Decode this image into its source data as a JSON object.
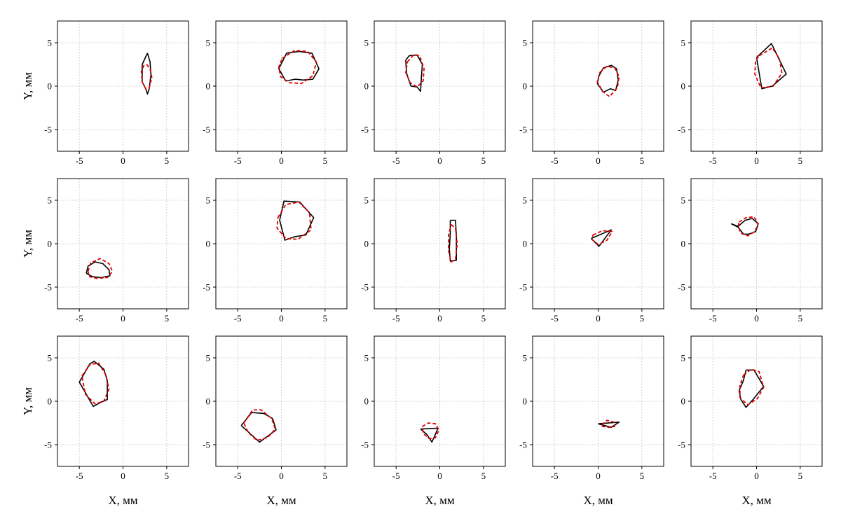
{
  "colors": {
    "outline": "#000000",
    "fit": "#e00000",
    "grid": "#c8c8c8"
  },
  "labels": {
    "xlabel": "X, мм",
    "ylabel": "Y, мм"
  },
  "chart_data": {
    "type": "line",
    "rows": 3,
    "cols": 5,
    "xlim": [
      -7.5,
      7.5
    ],
    "ylim": [
      -7.5,
      7.5
    ],
    "xticks": [
      -5,
      0,
      5
    ],
    "yticks": [
      -5,
      0,
      5
    ],
    "grid": true,
    "xlabel": "X, мм",
    "ylabel": "Y, мм",
    "series": [
      {
        "name": "",
        "style": "solid",
        "color": "#000000"
      },
      {
        "name": "",
        "style": "dashed",
        "color": "#e00000"
      }
    ],
    "panels": [
      {
        "solid": [
          [
            2.8,
            3.8
          ],
          [
            3.1,
            2.8
          ],
          [
            3.2,
            1.3
          ],
          [
            3.0,
            -0.3
          ],
          [
            2.8,
            -0.9
          ],
          [
            2.6,
            -0.3
          ],
          [
            2.2,
            0.5
          ],
          [
            2.2,
            2.5
          ],
          [
            2.8,
            3.8
          ]
        ],
        "dashed": [
          [
            2.7,
            2.5
          ],
          [
            3.1,
            2.0
          ],
          [
            3.3,
            1.0
          ],
          [
            3.0,
            -0.2
          ],
          [
            2.6,
            -0.3
          ],
          [
            2.2,
            0.5
          ],
          [
            2.1,
            1.7
          ],
          [
            2.4,
            2.4
          ],
          [
            2.7,
            2.5
          ]
        ]
      },
      {
        "solid": [
          [
            0.0,
            2.6
          ],
          [
            0.6,
            3.8
          ],
          [
            2.0,
            4.0
          ],
          [
            3.5,
            3.8
          ],
          [
            4.3,
            2.0
          ],
          [
            3.6,
            0.8
          ],
          [
            2.5,
            0.7
          ],
          [
            1.6,
            0.8
          ],
          [
            0.5,
            0.6
          ],
          [
            -0.3,
            2.0
          ],
          [
            0.0,
            2.6
          ]
        ],
        "dashed": [
          [
            0.1,
            3.2
          ],
          [
            1.5,
            4.1
          ],
          [
            3.0,
            4.0
          ],
          [
            4.0,
            2.8
          ],
          [
            3.6,
            1.2
          ],
          [
            2.3,
            0.3
          ],
          [
            0.9,
            0.4
          ],
          [
            -0.1,
            1.1
          ],
          [
            -0.3,
            2.2
          ],
          [
            0.1,
            3.2
          ]
        ]
      },
      {
        "solid": [
          [
            -3.9,
            3.0
          ],
          [
            -3.5,
            3.5
          ],
          [
            -2.6,
            3.6
          ],
          [
            -2.0,
            2.5
          ],
          [
            -2.1,
            1.0
          ],
          [
            -2.2,
            -0.6
          ],
          [
            -2.6,
            -0.1
          ],
          [
            -3.3,
            0.0
          ],
          [
            -3.8,
            1.5
          ],
          [
            -3.9,
            3.0
          ]
        ],
        "dashed": [
          [
            -3.7,
            2.8
          ],
          [
            -3.0,
            3.6
          ],
          [
            -2.3,
            3.5
          ],
          [
            -1.8,
            2.0
          ],
          [
            -1.9,
            0.6
          ],
          [
            -2.6,
            -0.1
          ],
          [
            -3.4,
            0.4
          ],
          [
            -3.9,
            1.6
          ],
          [
            -3.7,
            2.8
          ]
        ]
      },
      {
        "solid": [
          [
            0.1,
            1.2
          ],
          [
            0.6,
            2.1
          ],
          [
            1.5,
            2.4
          ],
          [
            2.1,
            2.0
          ],
          [
            2.3,
            0.7
          ],
          [
            2.0,
            -0.5
          ],
          [
            1.4,
            -0.3
          ],
          [
            0.6,
            -0.7
          ],
          [
            -0.1,
            0.3
          ],
          [
            0.1,
            1.2
          ]
        ],
        "dashed": [
          [
            0.2,
            1.6
          ],
          [
            1.0,
            2.3
          ],
          [
            1.9,
            2.1
          ],
          [
            2.4,
            1.1
          ],
          [
            2.2,
            -0.2
          ],
          [
            1.3,
            -1.2
          ],
          [
            0.5,
            -0.6
          ],
          [
            -0.1,
            0.5
          ],
          [
            0.2,
            1.6
          ]
        ]
      },
      {
        "solid": [
          [
            0.0,
            3.3
          ],
          [
            1.7,
            4.9
          ],
          [
            3.4,
            1.4
          ],
          [
            1.8,
            0.0
          ],
          [
            0.6,
            -0.3
          ],
          [
            0.0,
            3.3
          ]
        ],
        "dashed": [
          [
            0.3,
            3.5
          ],
          [
            1.8,
            4.4
          ],
          [
            2.6,
            3.2
          ],
          [
            2.9,
            1.5
          ],
          [
            1.9,
            0.0
          ],
          [
            0.5,
            -0.2
          ],
          [
            -0.2,
            1.4
          ],
          [
            -0.1,
            3.0
          ],
          [
            0.3,
            3.5
          ]
        ]
      },
      {
        "solid": [
          [
            -4.2,
            -3.4
          ],
          [
            -4.0,
            -2.6
          ],
          [
            -3.2,
            -2.1
          ],
          [
            -2.3,
            -2.3
          ],
          [
            -1.6,
            -3.0
          ],
          [
            -1.5,
            -3.7
          ],
          [
            -2.5,
            -3.9
          ],
          [
            -3.5,
            -3.8
          ],
          [
            -4.2,
            -3.4
          ]
        ],
        "dashed": [
          [
            -4.0,
            -3.2
          ],
          [
            -3.7,
            -2.2
          ],
          [
            -2.6,
            -1.7
          ],
          [
            -1.6,
            -2.3
          ],
          [
            -1.2,
            -3.2
          ],
          [
            -1.8,
            -3.9
          ],
          [
            -3.0,
            -4.0
          ],
          [
            -3.8,
            -3.8
          ],
          [
            -4.0,
            -3.2
          ]
        ]
      },
      {
        "solid": [
          [
            -0.2,
            2.7
          ],
          [
            0.3,
            4.9
          ],
          [
            2.1,
            4.8
          ],
          [
            3.7,
            3.0
          ],
          [
            2.8,
            1.0
          ],
          [
            1.5,
            0.8
          ],
          [
            0.4,
            0.4
          ],
          [
            -0.2,
            2.7
          ]
        ],
        "dashed": [
          [
            -0.4,
            3.0
          ],
          [
            0.5,
            4.5
          ],
          [
            2.0,
            4.8
          ],
          [
            3.2,
            3.6
          ],
          [
            3.4,
            1.6
          ],
          [
            1.9,
            0.5
          ],
          [
            0.5,
            0.6
          ],
          [
            -0.5,
            1.8
          ],
          [
            -0.4,
            3.0
          ]
        ]
      },
      {
        "solid": [
          [
            1.2,
            2.7
          ],
          [
            1.8,
            2.7
          ],
          [
            1.9,
            0.9
          ],
          [
            1.9,
            -1.9
          ],
          [
            1.2,
            -2.0
          ],
          [
            1.1,
            -0.6
          ],
          [
            1.2,
            1.2
          ],
          [
            1.2,
            2.7
          ]
        ],
        "dashed": [
          [
            1.3,
            2.2
          ],
          [
            1.8,
            1.8
          ],
          [
            2.0,
            0.0
          ],
          [
            1.8,
            -1.8
          ],
          [
            1.3,
            -2.1
          ],
          [
            1.0,
            -0.8
          ],
          [
            1.0,
            1.0
          ],
          [
            1.3,
            2.2
          ]
        ]
      },
      {
        "solid": [
          [
            -0.8,
            0.6
          ],
          [
            1.5,
            1.6
          ],
          [
            0.1,
            -0.3
          ],
          [
            -0.8,
            0.6
          ]
        ],
        "dashed": [
          [
            -0.6,
            1.0
          ],
          [
            0.5,
            1.5
          ],
          [
            1.6,
            1.4
          ],
          [
            1.0,
            0.4
          ],
          [
            0.0,
            -0.1
          ],
          [
            -0.7,
            0.5
          ],
          [
            -0.6,
            1.0
          ]
        ]
      },
      {
        "solid": [
          [
            -2.9,
            2.3
          ],
          [
            -2.1,
            2.0
          ],
          [
            -1.3,
            2.7
          ],
          [
            -0.5,
            2.9
          ],
          [
            0.2,
            2.3
          ],
          [
            -0.1,
            1.4
          ],
          [
            -0.9,
            1.1
          ],
          [
            -1.5,
            1.1
          ],
          [
            -2.1,
            1.9
          ],
          [
            -2.9,
            2.3
          ]
        ],
        "dashed": [
          [
            -2.0,
            2.5
          ],
          [
            -1.2,
            3.0
          ],
          [
            -0.3,
            3.1
          ],
          [
            0.2,
            2.3
          ],
          [
            -0.2,
            1.4
          ],
          [
            -1.0,
            0.9
          ],
          [
            -1.8,
            1.2
          ],
          [
            -2.1,
            2.0
          ],
          [
            -2.0,
            2.5
          ]
        ]
      },
      {
        "solid": [
          [
            -5.0,
            2.2
          ],
          [
            -3.8,
            4.3
          ],
          [
            -3.3,
            4.6
          ],
          [
            -2.2,
            3.7
          ],
          [
            -1.8,
            2.4
          ],
          [
            -1.8,
            0.2
          ],
          [
            -2.5,
            -0.1
          ],
          [
            -3.4,
            -0.6
          ],
          [
            -5.0,
            2.2
          ]
        ],
        "dashed": [
          [
            -4.7,
            2.9
          ],
          [
            -3.8,
            4.2
          ],
          [
            -2.8,
            4.4
          ],
          [
            -2.0,
            3.1
          ],
          [
            -1.6,
            1.4
          ],
          [
            -2.2,
            0.0
          ],
          [
            -3.2,
            -0.3
          ],
          [
            -4.3,
            0.8
          ],
          [
            -4.7,
            2.9
          ]
        ]
      },
      {
        "solid": [
          [
            -4.6,
            -2.8
          ],
          [
            -3.4,
            -1.3
          ],
          [
            -2.0,
            -1.4
          ],
          [
            -1.0,
            -2.0
          ],
          [
            -0.6,
            -3.3
          ],
          [
            -1.4,
            -3.9
          ],
          [
            -2.5,
            -4.7
          ],
          [
            -4.6,
            -2.8
          ]
        ],
        "dashed": [
          [
            -4.3,
            -2.5
          ],
          [
            -3.3,
            -1.0
          ],
          [
            -2.3,
            -1.0
          ],
          [
            -1.1,
            -2.0
          ],
          [
            -0.7,
            -3.2
          ],
          [
            -1.6,
            -4.2
          ],
          [
            -2.8,
            -4.5
          ],
          [
            -3.8,
            -3.6
          ],
          [
            -4.3,
            -2.5
          ]
        ]
      },
      {
        "solid": [
          [
            -2.2,
            -3.2
          ],
          [
            -0.2,
            -3.1
          ],
          [
            -0.9,
            -4.7
          ],
          [
            -1.5,
            -3.8
          ],
          [
            -2.2,
            -3.2
          ]
        ],
        "dashed": [
          [
            -2.0,
            -2.9
          ],
          [
            -1.3,
            -2.5
          ],
          [
            -0.5,
            -2.6
          ],
          [
            -0.1,
            -3.3
          ],
          [
            -0.5,
            -4.2
          ],
          [
            -1.2,
            -4.3
          ],
          [
            -1.9,
            -3.7
          ],
          [
            -2.0,
            -2.9
          ]
        ]
      },
      {
        "solid": [
          [
            0.0,
            -2.6
          ],
          [
            2.4,
            -2.4
          ],
          [
            1.5,
            -3.0
          ],
          [
            0.0,
            -2.6
          ]
        ],
        "dashed": [
          [
            0.4,
            -2.7
          ],
          [
            1.0,
            -2.2
          ],
          [
            1.8,
            -2.4
          ],
          [
            1.9,
            -2.9
          ],
          [
            1.2,
            -3.0
          ],
          [
            0.5,
            -2.9
          ],
          [
            0.4,
            -2.7
          ]
        ]
      },
      {
        "solid": [
          [
            -1.2,
            3.6
          ],
          [
            -0.3,
            3.6
          ],
          [
            0.3,
            2.6
          ],
          [
            0.8,
            1.7
          ],
          [
            -0.4,
            0.2
          ],
          [
            -1.2,
            -0.7
          ],
          [
            -1.8,
            0.2
          ],
          [
            -2.0,
            1.2
          ],
          [
            -1.5,
            2.4
          ],
          [
            -1.2,
            3.6
          ]
        ],
        "dashed": [
          [
            -1.5,
            3.0
          ],
          [
            -0.6,
            3.7
          ],
          [
            0.3,
            3.4
          ],
          [
            0.8,
            1.6
          ],
          [
            0.1,
            0.3
          ],
          [
            -1.0,
            -0.4
          ],
          [
            -1.9,
            0.4
          ],
          [
            -1.9,
            1.8
          ],
          [
            -1.5,
            3.0
          ]
        ]
      }
    ]
  }
}
